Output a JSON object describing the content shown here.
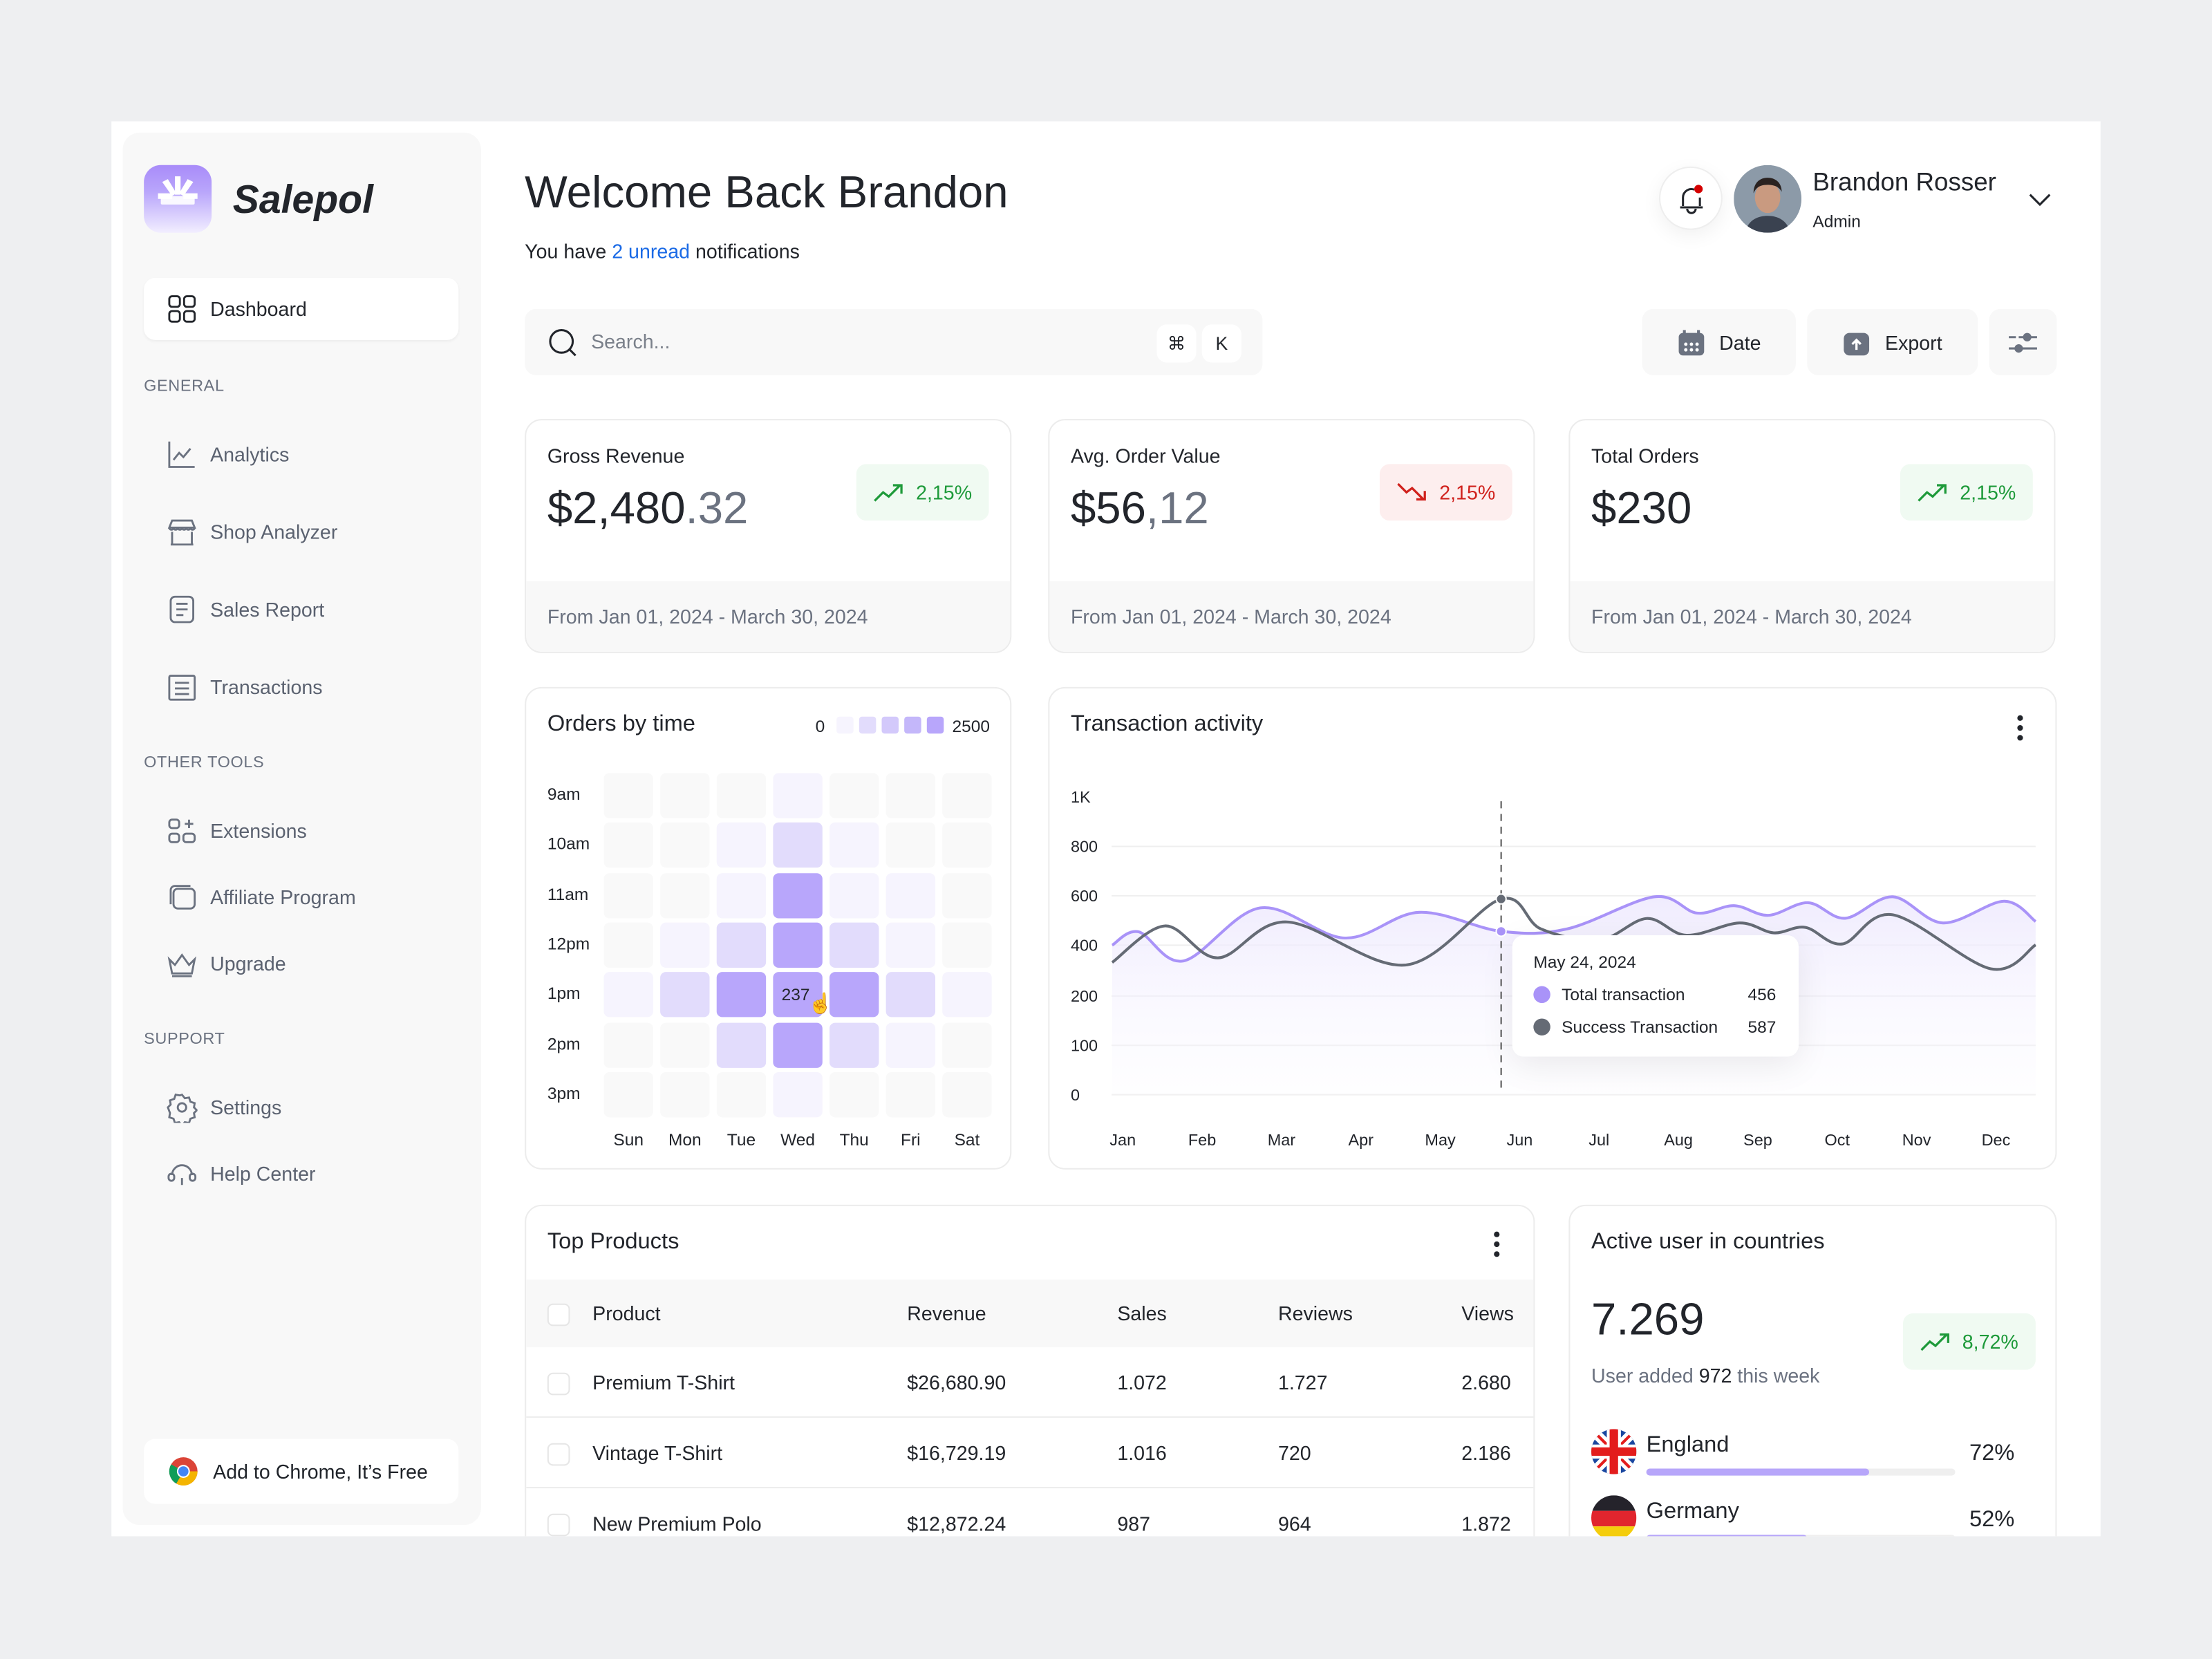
{
  "sidebar": {
    "brand": "Salepol",
    "active_item": "Dashboard",
    "sections": [
      {
        "title": "GENERAL",
        "items": [
          "Analytics",
          "Shop Analyzer",
          "Sales Report",
          "Transactions"
        ]
      },
      {
        "title": "OTHER TOOLS",
        "items": [
          "Extensions",
          "Affiliate Program",
          "Upgrade"
        ]
      },
      {
        "title": "SUPPORT",
        "items": [
          "Settings",
          "Help Center"
        ]
      }
    ],
    "chrome_cta": "Add to Chrome, It’s Free"
  },
  "header": {
    "title": "Welcome Back Brandon",
    "subtitle_pre": "You have",
    "subtitle_link": "2 unread",
    "subtitle_post": "notifications",
    "notification_dot_color": "#d40000",
    "user_name": "Brandon Rosser",
    "user_role": "Admin"
  },
  "toolbar": {
    "search_placeholder": "Search...",
    "shortcut_mod": "⌘",
    "shortcut_key": "K",
    "date_label": "Date",
    "export_label": "Export"
  },
  "stats": [
    {
      "label": "Gross Revenue",
      "value_main": "$2,480",
      "value_dec": ".32",
      "change": "2,15%",
      "trend": "up",
      "period": "From Jan 01, 2024 - March 30, 2024"
    },
    {
      "label": "Avg. Order Value",
      "value_main": "$56",
      "value_dec": ",12",
      "change": "2,15%",
      "trend": "down",
      "period": "From Jan 01, 2024 - March 30, 2024"
    },
    {
      "label": "Total Orders",
      "value_main": "$230",
      "value_dec": "",
      "change": "2,15%",
      "trend": "up",
      "period": "From Jan 01, 2024 - March 30, 2024"
    }
  ],
  "colors": {
    "accent": "#b7a6fa",
    "success": "#1e9a3a",
    "danger": "#d0211c",
    "success_line": "#6b7280",
    "link": "#1a6ae6"
  },
  "chart_data": [
    {
      "type": "heatmap",
      "title": "Orders by time",
      "legend_min": "0",
      "legend_max": "2500",
      "rows": [
        "9am",
        "10am",
        "11am",
        "12pm",
        "1pm",
        "2pm",
        "3pm"
      ],
      "columns": [
        "Sun",
        "Mon",
        "Tue",
        "Wed",
        "Thu",
        "Fri",
        "Sat"
      ],
      "values": [
        [
          0,
          0,
          0,
          500,
          0,
          0,
          0
        ],
        [
          0,
          0,
          500,
          1000,
          500,
          0,
          0
        ],
        [
          0,
          0,
          500,
          2500,
          500,
          500,
          0
        ],
        [
          0,
          500,
          1000,
          2500,
          1000,
          500,
          0
        ],
        [
          500,
          1000,
          2500,
          2500,
          2500,
          1000,
          500
        ],
        [
          0,
          0,
          1000,
          2500,
          1000,
          500,
          0
        ],
        [
          0,
          0,
          0,
          500,
          0,
          0,
          0
        ]
      ],
      "hover": {
        "row": "1pm",
        "column": "Wed",
        "label": "237"
      }
    },
    {
      "type": "line",
      "title": "Transaction activity",
      "y_ticks": [
        "0",
        "100",
        "200",
        "400",
        "600",
        "800",
        "1K"
      ],
      "y_tick_values": [
        0,
        100,
        200,
        400,
        600,
        800,
        1000
      ],
      "x_ticks": [
        "Jan",
        "Feb",
        "Mar",
        "Apr",
        "May",
        "Jun",
        "Jul",
        "Aug",
        "Sep",
        "Oct",
        "Nov",
        "Dec"
      ],
      "grid": true,
      "series": [
        {
          "name": "Total transaction",
          "color": "#a993f8",
          "area": true,
          "points": [
            [
              "2023-12-27",
              400
            ],
            [
              "2024-01-07",
              454
            ],
            [
              "2024-01-24",
              338
            ],
            [
              "2024-02-23",
              551
            ],
            [
              "2024-03-25",
              429
            ],
            [
              "2024-04-23",
              533
            ],
            [
              "2024-05-24",
              456
            ],
            [
              "2024-06-19",
              466
            ],
            [
              "2024-07-22",
              596
            ],
            [
              "2024-08-08",
              530
            ],
            [
              "2024-08-22",
              560
            ],
            [
              "2024-09-05",
              521
            ],
            [
              "2024-09-20",
              572
            ],
            [
              "2024-10-04",
              509
            ],
            [
              "2024-10-22",
              596
            ],
            [
              "2024-11-11",
              490
            ],
            [
              "2024-12-04",
              578
            ],
            [
              "2024-12-16",
              496
            ]
          ]
        },
        {
          "name": "Success Transaction",
          "color": "#656b75",
          "area": false,
          "points": [
            [
              "2023-12-27",
              332
            ],
            [
              "2024-01-17",
              478
            ],
            [
              "2024-02-07",
              350
            ],
            [
              "2024-03-03",
              494
            ],
            [
              "2024-04-18",
              322
            ],
            [
              "2024-05-24",
              587
            ],
            [
              "2024-06-09",
              466
            ],
            [
              "2024-07-01",
              420
            ],
            [
              "2024-07-19",
              508
            ],
            [
              "2024-08-04",
              440
            ],
            [
              "2024-08-24",
              490
            ],
            [
              "2024-09-07",
              450
            ],
            [
              "2024-09-19",
              472
            ],
            [
              "2024-10-03",
              405
            ],
            [
              "2024-10-22",
              523
            ],
            [
              "2024-11-29",
              307
            ],
            [
              "2024-12-16",
              401
            ]
          ]
        }
      ],
      "tooltip": {
        "date": "May 24, 2024",
        "focus_date": "2024-05-24",
        "rows": [
          {
            "label": "Total transaction",
            "value": "456"
          },
          {
            "label": "Success Transaction",
            "value": "587"
          }
        ]
      }
    }
  ],
  "top_products": {
    "title": "Top Products",
    "columns": [
      "Product",
      "Revenue",
      "Sales",
      "Reviews",
      "Views"
    ],
    "rows": [
      [
        "Premium T-Shirt",
        "$26,680.90",
        "1.072",
        "1.727",
        "2.680"
      ],
      [
        "Vintage T-Shirt",
        "$16,729.19",
        "1.016",
        "720",
        "2.186"
      ],
      [
        "New Premium Polo",
        "$12,872.24",
        "987",
        "964",
        "1.872"
      ]
    ]
  },
  "countries": {
    "title": "Active user in countries",
    "total": "7.269",
    "change": "8,72%",
    "added_pre": "User added",
    "added_count": "972",
    "added_post": "this week",
    "items": [
      {
        "name": "England",
        "percent_label": "72%",
        "percent": 72
      },
      {
        "name": "Germany",
        "percent_label": "52%",
        "percent": 52
      }
    ]
  }
}
